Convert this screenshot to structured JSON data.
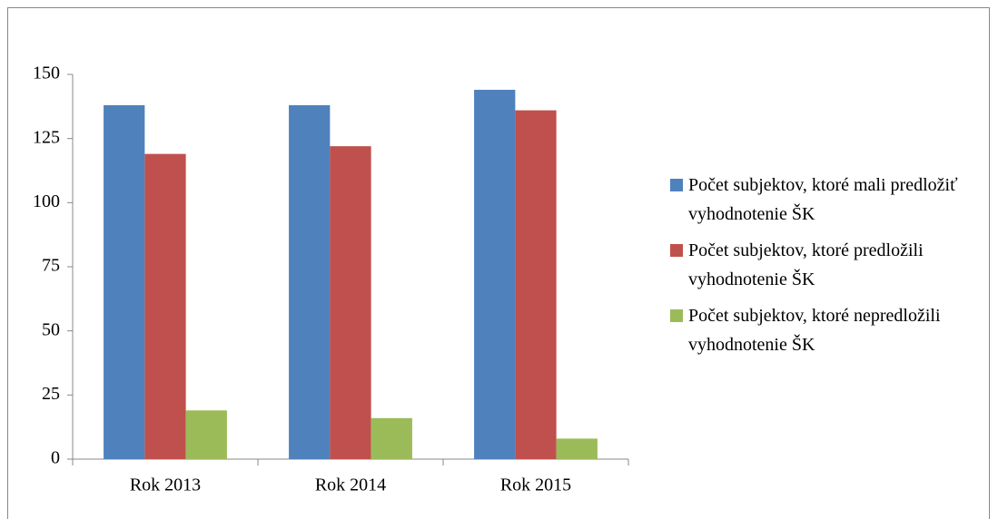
{
  "chart_data": {
    "type": "bar",
    "categories": [
      "Rok 2013",
      "Rok 2014",
      "Rok 2015"
    ],
    "series": [
      {
        "name": "Počet subjektov, ktoré mali predložiť vyhodnotenie ŠK",
        "color": "#4f81bd",
        "values": [
          138,
          138,
          144
        ]
      },
      {
        "name": "Počet subjektov, ktoré predložili vyhodnotenie ŠK",
        "color": "#c0504d",
        "values": [
          119,
          122,
          136
        ]
      },
      {
        "name": "Počet subjektov, ktoré nepredložili vyhodnotenie ŠK",
        "color": "#9bbb59",
        "values": [
          19,
          16,
          8
        ]
      }
    ],
    "ylim": [
      0,
      150
    ],
    "yticks": [
      0,
      25,
      50,
      75,
      100,
      125,
      150
    ],
    "grid": false,
    "legend": "right"
  }
}
